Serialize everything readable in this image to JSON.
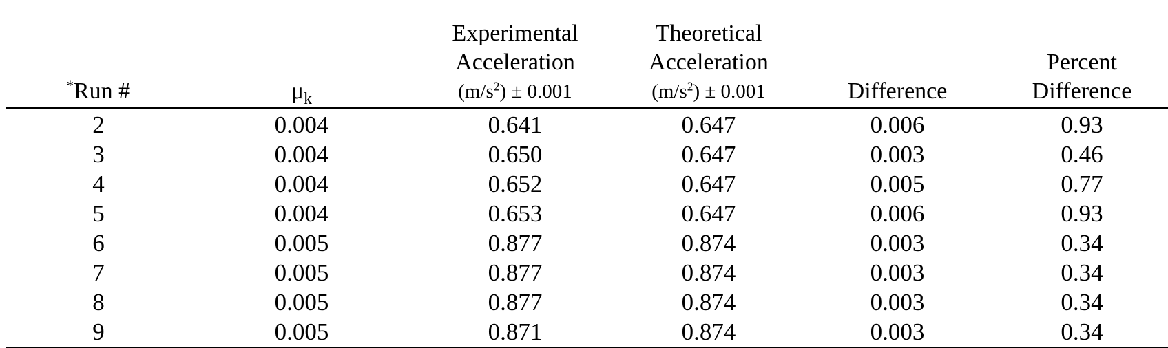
{
  "table": {
    "headers": {
      "run_asterisk": "*",
      "run": "Run #",
      "mu_symbol": "μ",
      "mu_subscript": "k",
      "exp_line1": "Experimental",
      "exp_line2": "Acceleration",
      "exp_unit_a": "(m/s",
      "exp_unit_sup": "2",
      "exp_unit_b": ") ± 0.001",
      "theo_line1": "Theoretical",
      "theo_line2": "Acceleration",
      "theo_unit_a": "(m/s",
      "theo_unit_sup": "2",
      "theo_unit_b": ") ± 0.001",
      "difference": "Difference",
      "pct_line1": "Percent",
      "pct_line2": "Difference"
    },
    "rows": [
      {
        "run": "2",
        "mu": "0.004",
        "exp": "0.641",
        "theo": "0.647",
        "diff": "0.006",
        "pct": "0.93"
      },
      {
        "run": "3",
        "mu": "0.004",
        "exp": "0.650",
        "theo": "0.647",
        "diff": "0.003",
        "pct": "0.46"
      },
      {
        "run": "4",
        "mu": "0.004",
        "exp": "0.652",
        "theo": "0.647",
        "diff": "0.005",
        "pct": "0.77"
      },
      {
        "run": "5",
        "mu": "0.004",
        "exp": "0.653",
        "theo": "0.647",
        "diff": "0.006",
        "pct": "0.93"
      },
      {
        "run": "6",
        "mu": "0.005",
        "exp": "0.877",
        "theo": "0.874",
        "diff": "0.003",
        "pct": "0.34"
      },
      {
        "run": "7",
        "mu": "0.005",
        "exp": "0.877",
        "theo": "0.874",
        "diff": "0.003",
        "pct": "0.34"
      },
      {
        "run": "8",
        "mu": "0.005",
        "exp": "0.877",
        "theo": "0.874",
        "diff": "0.003",
        "pct": "0.34"
      },
      {
        "run": "9",
        "mu": "0.005",
        "exp": "0.871",
        "theo": "0.874",
        "diff": "0.003",
        "pct": "0.34"
      }
    ]
  }
}
